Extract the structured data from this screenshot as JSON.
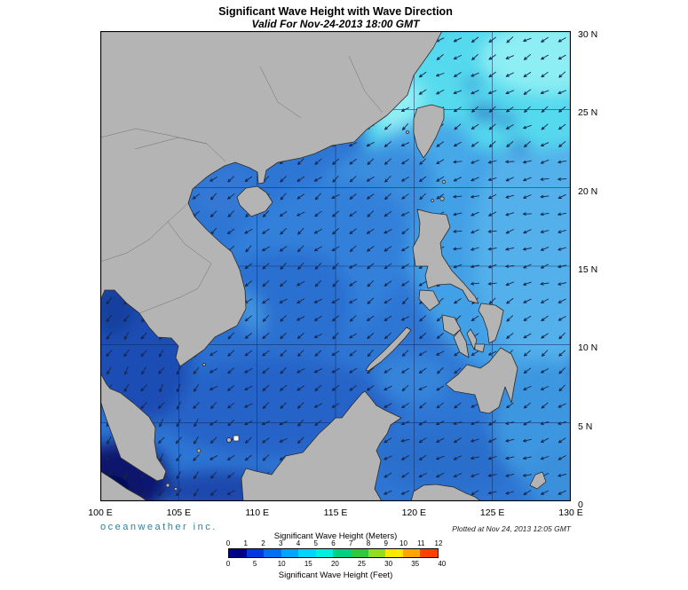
{
  "header": {
    "title": "Significant Wave Height with Wave Direction",
    "subtitle": "Valid For Nov-24-2013 18:00 GMT"
  },
  "map": {
    "lon_range_deg_east": [
      100,
      130
    ],
    "lat_range_deg_north": [
      0,
      30
    ],
    "grid_step_deg": 5,
    "lat_labels": [
      "30 N",
      "25 N",
      "20 N",
      "15 N",
      "10 N",
      "5 N",
      "0"
    ],
    "lon_labels": [
      "100 E",
      "105 E",
      "110 E",
      "115 E",
      "120 E",
      "125 E",
      "130 E"
    ],
    "land_color": "#b4b4b4",
    "arrow_color": "#15254a"
  },
  "legend": {
    "meters_label": "Significant Wave Height (Meters)",
    "feet_label": "Significant Wave Height (Feet)",
    "meters_ticks": [
      "0",
      "1",
      "2",
      "3",
      "4",
      "5",
      "6",
      "7",
      "8",
      "9",
      "10",
      "11",
      "12"
    ],
    "feet_ticks": [
      "0",
      "5",
      "10",
      "15",
      "20",
      "25",
      "30",
      "35",
      "40"
    ],
    "colors": [
      "#000087",
      "#0039dd",
      "#0070f0",
      "#00a6ff",
      "#00d4ff",
      "#00efdf",
      "#00d082",
      "#2fc83f",
      "#92dc22",
      "#ffe800",
      "#ffa400",
      "#ff4000"
    ]
  },
  "footer": {
    "credit": "oceanweather inc.",
    "plotted_at": "Plotted at Nov 24, 2013 12:05 GMT"
  }
}
